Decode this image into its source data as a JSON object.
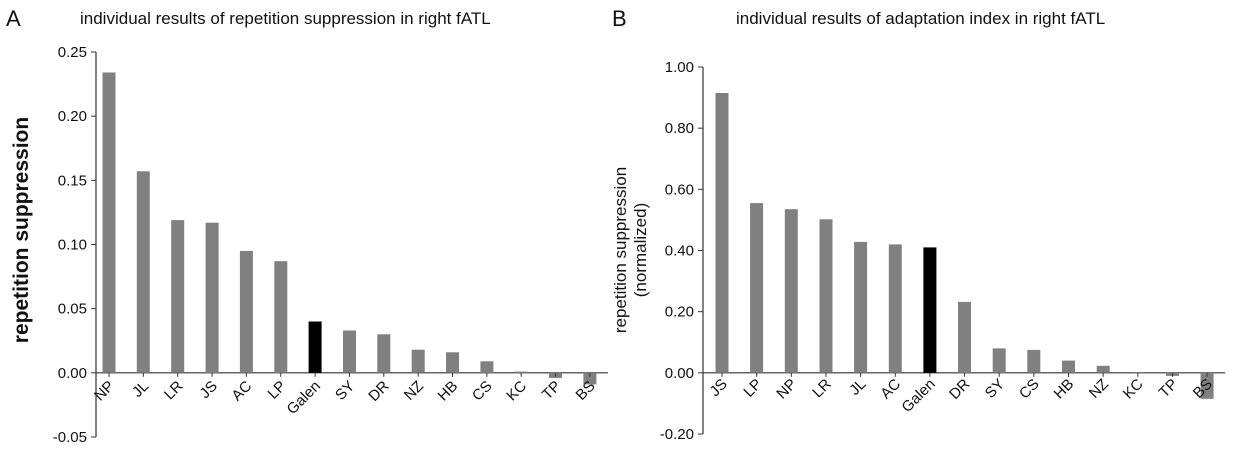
{
  "chart_data": [
    {
      "type": "bar",
      "panel_letter": "A",
      "title": "individual results of repetition suppression in right fATL",
      "xlabel": "",
      "ylabel": "repetition suppression",
      "ylim": [
        -0.05,
        0.25
      ],
      "yticks": [
        "-0.05",
        "0.00",
        "0.05",
        "0.10",
        "0.15",
        "0.20",
        "0.25"
      ],
      "categories": [
        "NP",
        "JL",
        "LR",
        "JS",
        "AC",
        "LP",
        "Galen",
        "SY",
        "DR",
        "NZ",
        "HB",
        "CS",
        "KC",
        "TP",
        "BS"
      ],
      "values": [
        0.234,
        0.157,
        0.119,
        0.117,
        0.095,
        0.087,
        0.04,
        0.033,
        0.03,
        0.018,
        0.016,
        0.009,
        0.001,
        -0.004,
        -0.009
      ],
      "bar_colors": [
        "#808080",
        "#808080",
        "#808080",
        "#808080",
        "#808080",
        "#808080",
        "#000000",
        "#808080",
        "#808080",
        "#808080",
        "#808080",
        "#808080",
        "#808080",
        "#808080",
        "#808080"
      ],
      "grid": false
    },
    {
      "type": "bar",
      "panel_letter": "B",
      "title": "individual results of adaptation index in right fATL",
      "xlabel": "",
      "ylabel": [
        "repetition suppression",
        "(normalized)"
      ],
      "ylim": [
        -0.2,
        1.0
      ],
      "yticks": [
        "-0.20",
        "0.00",
        "0.20",
        "0.40",
        "0.60",
        "0.80",
        "1.00"
      ],
      "categories": [
        "JS",
        "LP",
        "NP",
        "LR",
        "JL",
        "AC",
        "Galen",
        "DR",
        "SY",
        "CS",
        "HB",
        "NZ",
        "KC",
        "TP",
        "BS"
      ],
      "values": [
        0.915,
        0.555,
        0.535,
        0.502,
        0.428,
        0.42,
        0.41,
        0.232,
        0.08,
        0.075,
        0.04,
        0.023,
        0.0,
        -0.01,
        -0.085
      ],
      "bar_colors": [
        "#808080",
        "#808080",
        "#808080",
        "#808080",
        "#808080",
        "#808080",
        "#000000",
        "#808080",
        "#808080",
        "#808080",
        "#808080",
        "#808080",
        "#808080",
        "#808080",
        "#808080"
      ],
      "grid": false
    }
  ]
}
